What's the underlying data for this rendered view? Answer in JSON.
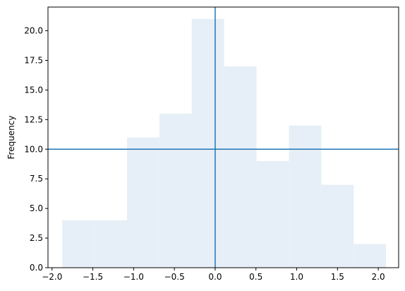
{
  "chart_data": {
    "type": "bar",
    "subtype": "histogram",
    "ylabel": "Frequency",
    "xlabel": "",
    "title": "",
    "xlim": [
      -2.05,
      2.25
    ],
    "ylim": [
      0,
      22
    ],
    "bins": [
      {
        "x0": -1.875,
        "x1": -1.478,
        "value": 4
      },
      {
        "x0": -1.478,
        "x1": -1.081,
        "value": 4
      },
      {
        "x0": -1.081,
        "x1": -0.684,
        "value": 11
      },
      {
        "x0": -0.684,
        "x1": -0.287,
        "value": 13
      },
      {
        "x0": -0.287,
        "x1": 0.11,
        "value": 21
      },
      {
        "x0": 0.11,
        "x1": 0.507,
        "value": 17
      },
      {
        "x0": 0.507,
        "x1": 0.904,
        "value": 9
      },
      {
        "x0": 0.904,
        "x1": 1.301,
        "value": 12
      },
      {
        "x0": 1.301,
        "x1": 1.698,
        "value": 7
      },
      {
        "x0": 1.698,
        "x1": 2.095,
        "value": 2
      }
    ],
    "x_ticks": [
      {
        "value": -2.0,
        "label": "−2.0"
      },
      {
        "value": -1.5,
        "label": "−1.5"
      },
      {
        "value": -1.0,
        "label": "−1.0"
      },
      {
        "value": -0.5,
        "label": "−0.5"
      },
      {
        "value": 0.0,
        "label": "0.0"
      },
      {
        "value": 0.5,
        "label": "0.5"
      },
      {
        "value": 1.0,
        "label": "1.0"
      },
      {
        "value": 1.5,
        "label": "1.5"
      },
      {
        "value": 2.0,
        "label": "2.0"
      }
    ],
    "y_ticks": [
      {
        "value": 0.0,
        "label": "0.0"
      },
      {
        "value": 2.5,
        "label": "2.5"
      },
      {
        "value": 5.0,
        "label": "5.0"
      },
      {
        "value": 7.5,
        "label": "7.5"
      },
      {
        "value": 10.0,
        "label": "10.0"
      },
      {
        "value": 12.5,
        "label": "12.5"
      },
      {
        "value": 15.0,
        "label": "15.0"
      },
      {
        "value": 17.5,
        "label": "17.5"
      },
      {
        "value": 20.0,
        "label": "20.0"
      }
    ],
    "reference_lines": {
      "vertical_x": 0.0,
      "horizontal_y": 10.0
    },
    "grid": false,
    "colors": {
      "bar_fill": "#e6eff7",
      "reference_line": "#1f77b4",
      "axis": "#000000"
    }
  }
}
